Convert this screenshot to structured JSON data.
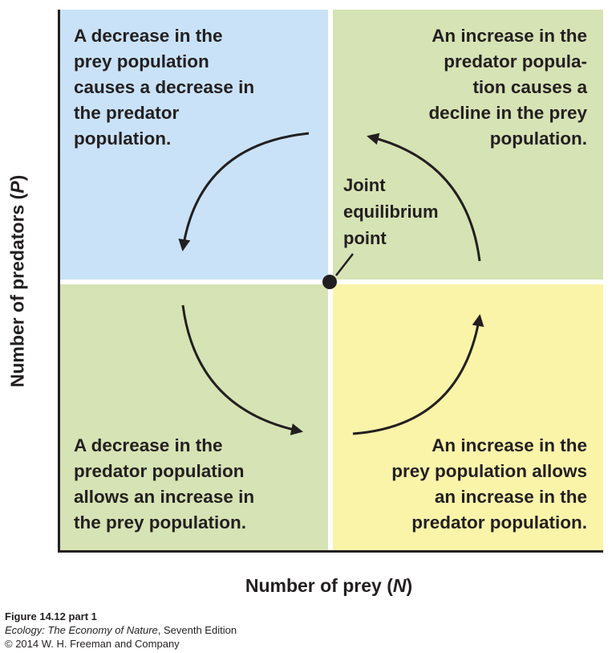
{
  "quadrants": {
    "top_left": {
      "lines": [
        "A decrease in the",
        "prey population",
        "causes a decrease in",
        "the predator",
        "population."
      ],
      "color": "#c9e2f7"
    },
    "top_right": {
      "lines": [
        "An increase in the",
        "predator popula-",
        "tion causes a",
        "decline in the prey",
        "population."
      ],
      "color": "#d6e3b4"
    },
    "bottom_left": {
      "lines": [
        "A decrease in the",
        "predator population",
        "allows an increase in",
        "the prey population."
      ],
      "color": "#d6e3b4"
    },
    "bottom_right": {
      "lines": [
        "An increase in the",
        "prey population allows",
        "an increase in the",
        "predator population."
      ],
      "color": "#faf4a9"
    }
  },
  "equilibrium_label": [
    "Joint",
    "equilibrium",
    "point"
  ],
  "axes": {
    "y_label_prefix": "Number of predators (",
    "y_label_var": "P",
    "y_label_suffix": ")",
    "x_label_prefix": "Number of prey (",
    "x_label_var": "N",
    "x_label_suffix": ")"
  },
  "caption": {
    "figure": "Figure 14.12 part 1",
    "book_title": "Ecology: The Economy of Nature",
    "edition": ", Seventh Edition",
    "copyright": "© 2014 W. H. Freeman and Company"
  }
}
